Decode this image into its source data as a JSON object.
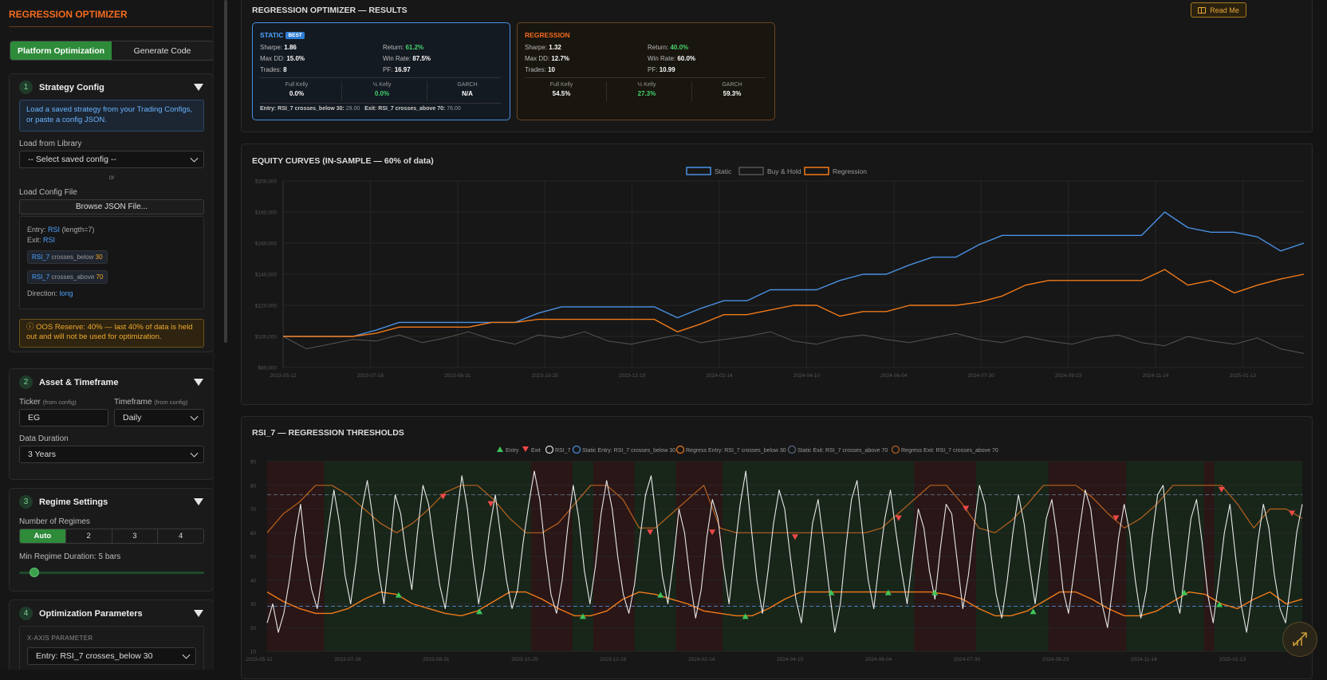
{
  "app": {
    "title": "REGRESSION OPTIMIZER"
  },
  "tabs": [
    {
      "label": "Platform Optimization",
      "active": true
    },
    {
      "label": "Generate Code",
      "active": false
    }
  ],
  "strategy": {
    "number": "1",
    "title": "Strategy Config",
    "info": "Load a saved strategy from your Trading Configs, or paste a config JSON.",
    "library_label": "Load from Library",
    "library_value": "-- Select saved config --",
    "or": "or",
    "file_label": "Load Config File",
    "browse": "Browse JSON File...",
    "entry_prefix": "Entry:",
    "entry_ind": "RSI",
    "entry_params": "(length=7)",
    "exit_prefix": "Exit:",
    "exit_ind": "RSI",
    "cond1": {
      "var": "RSI_7",
      "op": "crosses_below",
      "val": "30"
    },
    "cond2": {
      "var": "RSI_7",
      "op": "crosses_above",
      "val": "70"
    },
    "direction_label": "Direction:",
    "direction": "long",
    "warning": "OOS Reserve: 40% — last 40% of data is held out and will not be used for optimization."
  },
  "asset": {
    "number": "2",
    "title": "Asset & Timeframe",
    "ticker_label": "Ticker",
    "ticker_note": "(from config)",
    "ticker": "EG",
    "timeframe_label": "Timeframe",
    "timeframe_note": "(from config)",
    "timeframe": "Daily",
    "duration_label": "Data Duration",
    "duration": "3 Years"
  },
  "regime": {
    "number": "3",
    "title": "Regime Settings",
    "count_label": "Number of Regimes",
    "options": [
      "Auto",
      "2",
      "3",
      "4"
    ],
    "selected": "Auto",
    "min_label": "Min Regime Duration: 5 bars",
    "min_duration_fraction": 0.1
  },
  "optim": {
    "number": "4",
    "title": "Optimization Parameters",
    "xaxis_label": "X-AXIS PARAMETER",
    "xaxis_value": "Entry: RSI_7 crosses_below 30"
  },
  "results": {
    "title": "REGRESSION OPTIMIZER — RESULTS",
    "readme": "Read Me",
    "static": {
      "name": "STATIC",
      "badge": "BEST",
      "sharpe_l": "Sharpe:",
      "sharpe": "1.86",
      "return_l": "Return:",
      "return": "61.2%",
      "maxdd_l": "Max DD:",
      "maxdd": "15.0%",
      "winrate_l": "Win Rate:",
      "winrate": "87.5%",
      "trades_l": "Trades:",
      "trades": "8",
      "pf_l": "PF:",
      "pf": "16.97",
      "fk_l": "Full Kelly",
      "fk": "0.0%",
      "hk_l": "½ Kelly",
      "hk": "0.0%",
      "garch_l": "GARCH",
      "garch": "N/A",
      "entry_l": "Entry: RSI_7 crosses_below 30:",
      "entry_v": "29.00",
      "exit_l": "Exit: RSI_7 crosses_above 70:",
      "exit_v": "76.00"
    },
    "regression": {
      "name": "REGRESSION",
      "sharpe_l": "Sharpe:",
      "sharpe": "1.32",
      "return_l": "Return:",
      "return": "40.0%",
      "maxdd_l": "Max DD:",
      "maxdd": "12.7%",
      "winrate_l": "Win Rate:",
      "winrate": "60.0%",
      "trades_l": "Trades:",
      "trades": "10",
      "pf_l": "PF:",
      "pf": "10.99",
      "fk_l": "Full Kelly",
      "fk": "54.5%",
      "hk_l": "½ Kelly",
      "hk": "27.3%",
      "garch_l": "GARCH",
      "garch": "59.3%"
    }
  },
  "colors": {
    "static": "#4a90e2",
    "regression": "#f07a1a",
    "buyhold": "#555555",
    "green": "#44d46a",
    "orange": "#f26b1d"
  },
  "chart_data": [
    {
      "type": "line",
      "title": "EQUITY CURVES (IN-SAMPLE — 60% of data)",
      "ylim": [
        80000,
        200000
      ],
      "y_ticks": [
        "$80,000",
        "$100,000",
        "$120,000",
        "$140,000",
        "$160,000",
        "$180,000",
        "$200,000"
      ],
      "x_ticks": [
        "2023-05-12",
        "2023-07-16",
        "2023-08-31",
        "2023-10-25",
        "2023-12-19",
        "2024-02-14",
        "2024-04-10",
        "2024-06-04",
        "2024-07-30",
        "2024-09-23",
        "2024-11-14",
        "2025-01-13"
      ],
      "series": [
        {
          "name": "Static",
          "color": "#4a90e2",
          "values": [
            100000,
            100000,
            100000,
            100000,
            104000,
            109000,
            109000,
            109000,
            109000,
            109000,
            109000,
            115000,
            119000,
            119000,
            119000,
            119000,
            119000,
            112000,
            118000,
            123000,
            123000,
            130000,
            130000,
            130000,
            136000,
            140000,
            140000,
            146000,
            151000,
            151000,
            159000,
            165000,
            165000,
            165000,
            165000,
            165000,
            165000,
            165000,
            180000,
            170000,
            167000,
            167000,
            164000,
            155000,
            160000
          ]
        },
        {
          "name": "Buy & Hold",
          "color": "#555555",
          "values": [
            100000,
            92000,
            95000,
            98000,
            97000,
            101000,
            96000,
            99000,
            103000,
            98000,
            95000,
            101000,
            99000,
            103000,
            97000,
            95000,
            98000,
            101000,
            96000,
            98000,
            100000,
            103000,
            97000,
            95000,
            99000,
            101000,
            98000,
            96000,
            99000,
            102000,
            98000,
            96000,
            100000,
            97000,
            95000,
            99000,
            101000,
            96000,
            94000,
            100000,
            97000,
            95000,
            99000,
            92000,
            89000
          ]
        },
        {
          "name": "Regression",
          "color": "#f07a1a",
          "values": [
            100000,
            100000,
            100000,
            100000,
            102000,
            106000,
            106000,
            106000,
            106000,
            109000,
            109000,
            111000,
            111000,
            111000,
            111000,
            111000,
            111000,
            103000,
            108000,
            114000,
            114000,
            117000,
            120000,
            120000,
            113000,
            116000,
            116000,
            120000,
            120000,
            120000,
            122000,
            126000,
            133000,
            136000,
            136000,
            136000,
            136000,
            136000,
            143000,
            133000,
            136000,
            128000,
            133000,
            137000,
            140000
          ]
        }
      ]
    },
    {
      "type": "line",
      "title": "RSI_7 — REGRESSION THRESHOLDS",
      "ylim": [
        10,
        90
      ],
      "y_ticks": [
        "10",
        "20",
        "30",
        "40",
        "50",
        "60",
        "70",
        "80",
        "90"
      ],
      "x_ticks": [
        "2023-05-12",
        "2023-07-16",
        "2023-08-31",
        "2023-10-25",
        "2023-12-19",
        "2024-02-14",
        "2024-04-10",
        "2024-06-04",
        "2024-07-30",
        "2024-09-23",
        "2024-11-14",
        "2025-01-13"
      ],
      "legend": [
        "Entry",
        "Exit",
        "RSI_7",
        "Static Entry: RSI_7 crosses_below 30",
        "Regress Entry: RSI_7 crosses_below 30",
        "Static Exit: RSI_7 crosses_above 70",
        "Regress Exit: RSI_7 crosses_above 70"
      ],
      "static_entry": 29,
      "static_exit": 76,
      "regress_exit": [
        60,
        68,
        73,
        80,
        80,
        76,
        70,
        64,
        60,
        64,
        70,
        77,
        80,
        80,
        74,
        66,
        60,
        60,
        64,
        72,
        80,
        80,
        74,
        62,
        62,
        68,
        74,
        80,
        62,
        60,
        60,
        60,
        60,
        60,
        60,
        60,
        60,
        60,
        62,
        68,
        74,
        80,
        80,
        72,
        62,
        60,
        65,
        72,
        80,
        80,
        80,
        75,
        68,
        62,
        66,
        72,
        80,
        80,
        80,
        80,
        72,
        62,
        70,
        70,
        66
      ],
      "regress_entry": [
        35,
        31,
        28,
        26,
        26,
        28,
        32,
        35,
        34,
        30,
        28,
        26,
        25,
        27,
        31,
        35,
        35,
        32,
        28,
        25,
        25,
        27,
        32,
        35,
        34,
        32,
        30,
        27,
        26,
        25,
        25,
        28,
        32,
        35,
        35,
        35,
        35,
        35,
        35,
        35,
        35,
        35,
        34,
        32,
        28,
        25,
        25,
        27,
        31,
        35,
        35,
        32,
        28,
        25,
        25,
        27,
        31,
        35,
        34,
        30,
        28,
        32,
        35,
        30,
        32
      ],
      "rsi": [
        22,
        30,
        18,
        26,
        40,
        58,
        72,
        50,
        36,
        28,
        44,
        62,
        78,
        64,
        42,
        30,
        48,
        70,
        82,
        66,
        44,
        30,
        52,
        76,
        68,
        50,
        36,
        60,
        80,
        72,
        54,
        38,
        28,
        46,
        66,
        84,
        70,
        48,
        30,
        44,
        62,
        76,
        58,
        40,
        28,
        36,
        56,
        72,
        86,
        74,
        52,
        34,
        26,
        40,
        62,
        80,
        66,
        44,
        30,
        46,
        68,
        82,
        70,
        50,
        34,
        26,
        38,
        58,
        76,
        84,
        64,
        42,
        30,
        48,
        70,
        60,
        40,
        24,
        36,
        58,
        74,
        66,
        46,
        30,
        52,
        72,
        86,
        62,
        40,
        26,
        44,
        64,
        78,
        70,
        50,
        32,
        22,
        42,
        64,
        74,
        56,
        36,
        18,
        30,
        54,
        74,
        82,
        60,
        40,
        28,
        48,
        66,
        78,
        60,
        44,
        30,
        50,
        70,
        62,
        44,
        32,
        54,
        72,
        68,
        48,
        28,
        42,
        62,
        80,
        72,
        52,
        34,
        24,
        40,
        60,
        76,
        64,
        46,
        30,
        48,
        66,
        74,
        58,
        36,
        26,
        44,
        62,
        78,
        70,
        50,
        30,
        20,
        38,
        58,
        72,
        60,
        40,
        24,
        36,
        58,
        76,
        80,
        58,
        36,
        26,
        46,
        66,
        74,
        56,
        34,
        22,
        40,
        60,
        72,
        50,
        30,
        18,
        34,
        56,
        72,
        62,
        42,
        28,
        22,
        40,
        60,
        72
      ]
    }
  ]
}
